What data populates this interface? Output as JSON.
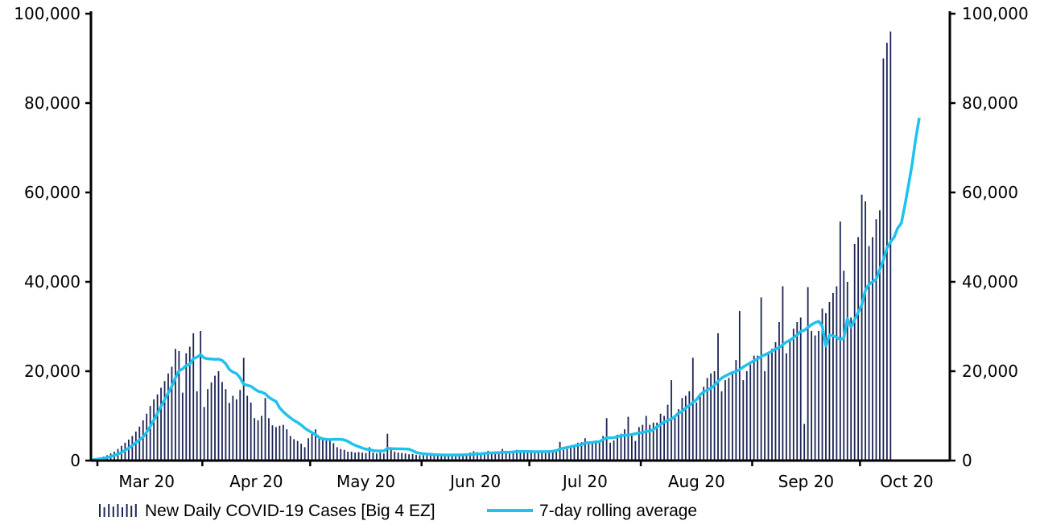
{
  "chart_data": {
    "type": "bar",
    "title": "",
    "xlabel": "",
    "ylabel": "",
    "ylim": [
      0,
      100000
    ],
    "y_ticks": [
      0,
      20000,
      40000,
      60000,
      80000,
      100000
    ],
    "y_tick_labels": [
      "0",
      "20,000",
      "40,000",
      "60,000",
      "80,000",
      "100,000"
    ],
    "x_month_labels": [
      "Mar 20",
      "Apr 20",
      "May 20",
      "Jun 20",
      "Jul 20",
      "Aug 20",
      "Sep 20",
      "Oct 20"
    ],
    "x_month_starts": [
      0,
      31,
      61,
      92,
      122,
      153,
      184,
      214
    ],
    "x_month_mid": [
      15.5,
      46,
      76.5,
      107,
      137.5,
      168.5,
      199,
      227
    ],
    "x_days": 239,
    "colors": {
      "bars": "#1c2455",
      "line": "#1ec2ee",
      "axis": "#000000"
    },
    "series": [
      {
        "name": "New Daily COVID-19 Cases [Big 4 EZ]",
        "type": "bar",
        "values": [
          300,
          500,
          700,
          900,
          1200,
          1600,
          2000,
          2600,
          3300,
          4000,
          4700,
          5500,
          6500,
          7600,
          9000,
          10500,
          12200,
          13700,
          14800,
          16300,
          17800,
          19500,
          21000,
          25000,
          24500,
          15200,
          24000,
          25500,
          28500,
          15500,
          29000,
          12000,
          16000,
          17500,
          19000,
          20000,
          17600,
          16000,
          12900,
          14500,
          13700,
          15800,
          23000,
          14500,
          13000,
          9500,
          9000,
          10000,
          14000,
          9500,
          7900,
          7500,
          7800,
          8000,
          7000,
          5500,
          4800,
          4400,
          3800,
          3000,
          5000,
          6000,
          7000,
          5000,
          4700,
          4500,
          4800,
          3900,
          3000,
          2600,
          2400,
          2000,
          2000,
          1800,
          1900,
          1800,
          1700,
          3000,
          1800,
          1600,
          1800,
          1600,
          6000,
          2800,
          2000,
          1800,
          1700,
          1600,
          1400,
          1500,
          1300,
          1200,
          1200,
          1300,
          1400,
          1200,
          1300,
          1400,
          1200,
          1100,
          1300,
          1500,
          1400,
          1300,
          1400,
          1800,
          2100,
          1900,
          1800,
          1900,
          2200,
          1700,
          1700,
          1800,
          2600,
          2100,
          1800,
          2100,
          2400,
          2000,
          1900,
          2000,
          2100,
          1800,
          1900,
          2000,
          1900,
          2300,
          2300,
          2400,
          4200,
          2400,
          2600,
          3000,
          3500,
          4000,
          4100,
          5000,
          4200,
          3800,
          4500,
          4000,
          5500,
          9500,
          4000,
          4500,
          5800,
          6000,
          7000,
          9800,
          5500,
          4400,
          7500,
          8000,
          10000,
          8000,
          8500,
          8500,
          10500,
          10000,
          12500,
          18000,
          10000,
          11500,
          14000,
          14500,
          15500,
          23000,
          13000,
          15000,
          16500,
          18500,
          19500,
          20000,
          28500,
          15500,
          18000,
          18500,
          19500,
          22500,
          33500,
          18000,
          20000,
          21500,
          23500,
          23500,
          36500,
          20000,
          24000,
          25000,
          26500,
          31000,
          39000,
          24000,
          27000,
          29500,
          31000,
          32000,
          8200,
          38800,
          29000,
          28000,
          29000,
          34000,
          33000,
          35500,
          37500,
          39000,
          53500,
          42500,
          40000,
          32000,
          48500,
          50000,
          59500,
          58000,
          48000,
          50000,
          54000,
          56000,
          90000,
          93500,
          96000
        ]
      },
      {
        "name": "7-day rolling average",
        "type": "line",
        "values": [
          200,
          280,
          390,
          520,
          690,
          890,
          1160,
          1460,
          1840,
          2290,
          2800,
          3380,
          4010,
          4630,
          5280,
          6350,
          7650,
          9060,
          10580,
          12120,
          13620,
          15130,
          16640,
          18490,
          20110,
          20510,
          21300,
          21540,
          22820,
          23130,
          23700,
          22960,
          22790,
          22720,
          22660,
          22710,
          22410,
          21680,
          20390,
          19820,
          19470,
          18510,
          17080,
          16850,
          16640,
          16030,
          15510,
          15320,
          14950,
          14180,
          13650,
          13240,
          11810,
          10940,
          10210,
          9570,
          8990,
          8530,
          7960,
          7260,
          6730,
          6260,
          5810,
          5190,
          4860,
          4760,
          4680,
          4750,
          4770,
          4750,
          4620,
          4300,
          3800,
          3430,
          3130,
          2820,
          2540,
          2480,
          2260,
          2170,
          2170,
          2160,
          2720,
          2680,
          2630,
          2640,
          2610,
          2580,
          2550,
          2210,
          1810,
          1640,
          1530,
          1470,
          1410,
          1340,
          1300,
          1260,
          1250,
          1240,
          1250,
          1260,
          1260,
          1290,
          1320,
          1350,
          1440,
          1500,
          1540,
          1620,
          1680,
          1720,
          1760,
          1770,
          1850,
          1880,
          1880,
          1940,
          1990,
          2020,
          2030,
          2030,
          2000,
          1980,
          1980,
          2000,
          1990,
          2030,
          2100,
          2230,
          2590,
          2770,
          2940,
          3110,
          3300,
          3470,
          3540,
          3920,
          4010,
          4050,
          4190,
          4240,
          4710,
          5080,
          5080,
          5130,
          5340,
          5570,
          5650,
          5690,
          5830,
          6010,
          6160,
          6300,
          6520,
          6590,
          6940,
          7570,
          8070,
          8630,
          9000,
          9280,
          9860,
          10650,
          10990,
          11760,
          12390,
          12990,
          13640,
          14720,
          15360,
          15780,
          16220,
          16880,
          17730,
          18470,
          18940,
          19340,
          19690,
          19950,
          20350,
          20940,
          21430,
          21900,
          22340,
          22750,
          23330,
          23640,
          24070,
          24480,
          24980,
          25280,
          25930,
          26510,
          26930,
          27490,
          28120,
          28910,
          29130,
          29810,
          30420,
          30850,
          31180,
          30060,
          25640,
          28120,
          27890,
          27600,
          27090,
          27410,
          31780,
          29890,
          31510,
          33180,
          34850,
          38130,
          39440,
          40000,
          40570,
          42760,
          44850,
          47540,
          48920,
          49970,
          52050,
          53120,
          57170,
          61600,
          66340,
          72000,
          76700
        ]
      }
    ]
  }
}
